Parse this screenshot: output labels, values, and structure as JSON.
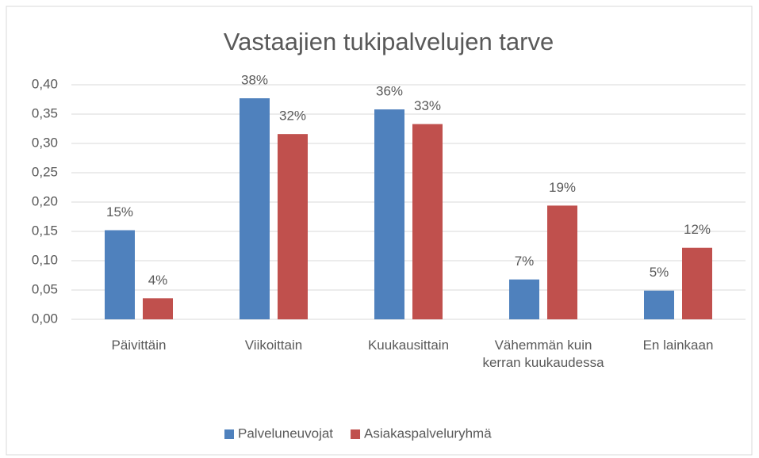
{
  "chart_data": {
    "type": "bar",
    "title": "Vastaajien tukipalvelujen tarve",
    "categories": [
      "Päivittäin",
      "Viikoittain",
      "Kuukausittain",
      "Vähemmän kuin kerran kuukaudessa",
      "En lainkaan"
    ],
    "series": [
      {
        "name": "Palveluneuvojat",
        "color": "#4f81bd",
        "values": [
          0.152,
          0.377,
          0.358,
          0.068,
          0.049
        ],
        "value_labels": [
          "15%",
          "38%",
          "36%",
          "7%",
          "5%"
        ]
      },
      {
        "name": "Asiakaspalveluryhmä",
        "color": "#c0504d",
        "values": [
          0.036,
          0.316,
          0.333,
          0.194,
          0.122
        ],
        "value_labels": [
          "4%",
          "32%",
          "33%",
          "19%",
          "12%"
        ]
      }
    ],
    "ylim": [
      0,
      0.4
    ],
    "yticks": [
      {
        "value": 0,
        "label": "0,00"
      },
      {
        "value": 0.05,
        "label": "0,05"
      },
      {
        "value": 0.1,
        "label": "0,10"
      },
      {
        "value": 0.15,
        "label": "0,15"
      },
      {
        "value": 0.2,
        "label": "0,20"
      },
      {
        "value": 0.25,
        "label": "0,25"
      },
      {
        "value": 0.3,
        "label": "0,30"
      },
      {
        "value": 0.35,
        "label": "0,35"
      },
      {
        "value": 0.4,
        "label": "0,40"
      }
    ],
    "grid": true,
    "legend": "bottom"
  }
}
